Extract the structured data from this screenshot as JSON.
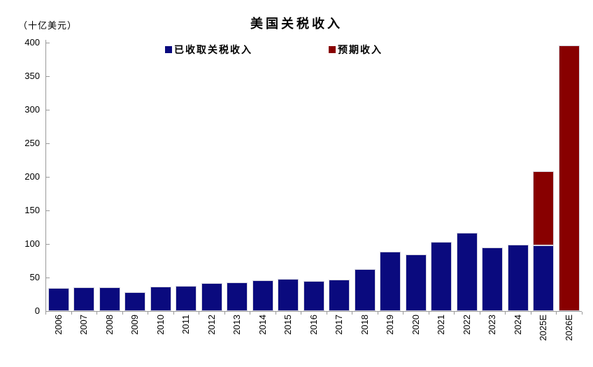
{
  "chart_data": {
    "type": "bar",
    "stacked": true,
    "title": "美国关税收入",
    "unit_label": "（十亿美元）",
    "categories": [
      "2006",
      "2007",
      "2008",
      "2009",
      "2010",
      "2011",
      "2012",
      "2013",
      "2014",
      "2015",
      "2016",
      "2017",
      "2018",
      "2019",
      "2020",
      "2021",
      "2022",
      "2023",
      "2024",
      "2025E",
      "2026E"
    ],
    "series": [
      {
        "name": "已收取关税收入",
        "color": "#0A0A7E",
        "values": [
          34,
          35,
          35,
          28,
          36,
          38,
          42,
          43,
          46,
          48,
          45,
          47,
          62,
          89,
          84,
          103,
          117,
          95,
          99,
          98,
          0
        ]
      },
      {
        "name": "预期收入",
        "color": "#880000",
        "values": [
          0,
          0,
          0,
          0,
          0,
          0,
          0,
          0,
          0,
          0,
          0,
          0,
          0,
          0,
          0,
          0,
          0,
          0,
          0,
          110,
          396
        ]
      }
    ],
    "xlabel": "",
    "ylabel": "（十亿美元）",
    "ylim": [
      0,
      400
    ],
    "ytick_step": 50,
    "y_tick_labels": [
      "0",
      "50",
      "100",
      "150",
      "200",
      "250",
      "300",
      "350",
      "400"
    ],
    "grid": false,
    "legend_position": "top-center"
  },
  "legend": {
    "items": [
      {
        "label": "已收取关税收入",
        "color": "#0A0A7E"
      },
      {
        "label": "预期收入",
        "color": "#880000"
      }
    ]
  }
}
